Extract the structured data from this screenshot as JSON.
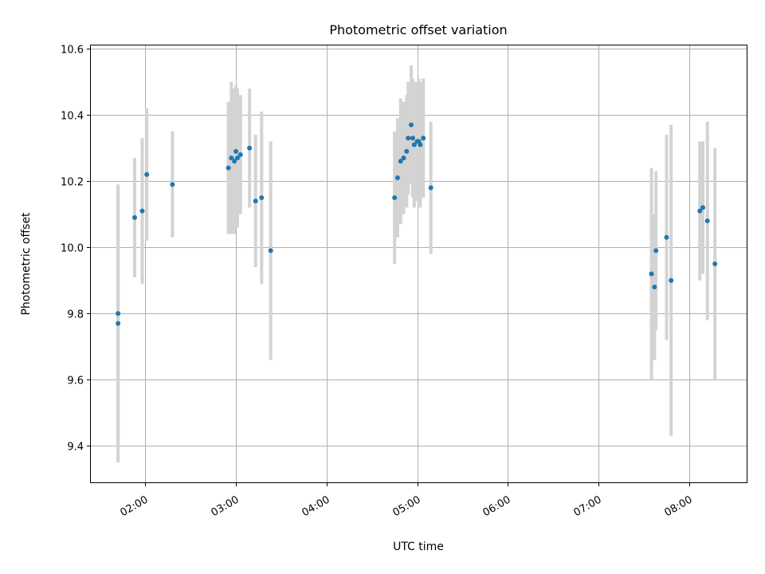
{
  "chart_data": {
    "type": "scatter",
    "title": "Photometric offset variation",
    "xlabel": "UTC time",
    "ylabel": "Photometric offset",
    "grid": true,
    "x_ticks": [
      "02:00",
      "03:00",
      "04:00",
      "05:00",
      "06:00",
      "07:00",
      "08:00"
    ],
    "y_ticks": [
      "9.4",
      "9.6",
      "9.8",
      "10.0",
      "10.2",
      "10.4",
      "10.6"
    ],
    "ylim": [
      9.29,
      10.61
    ],
    "xlim": [
      "01:24",
      "08:38"
    ],
    "colors": {
      "point": "#1f77b4",
      "errorbar": "#d3d3d3",
      "grid": "#b0b0b0"
    },
    "series": [
      {
        "points": [
          {
            "x": "01:42",
            "y": 9.77,
            "err": 0.42
          },
          {
            "x": "01:42",
            "y": 9.8,
            "err": 0.39
          },
          {
            "x": "01:53",
            "y": 10.09,
            "err": 0.18
          },
          {
            "x": "01:58",
            "y": 10.11,
            "err": 0.22
          },
          {
            "x": "02:01",
            "y": 10.22,
            "err": 0.2
          },
          {
            "x": "02:18",
            "y": 10.19,
            "err": 0.16
          },
          {
            "x": "02:55",
            "y": 10.24,
            "err": 0.2
          },
          {
            "x": "02:57",
            "y": 10.27,
            "err": 0.23
          },
          {
            "x": "02:59",
            "y": 10.26,
            "err": 0.22
          },
          {
            "x": "03:00",
            "y": 10.29,
            "err": 0.2
          },
          {
            "x": "03:01",
            "y": 10.27,
            "err": 0.21
          },
          {
            "x": "03:03",
            "y": 10.28,
            "err": 0.18
          },
          {
            "x": "03:09",
            "y": 10.3,
            "err": 0.18
          },
          {
            "x": "03:13",
            "y": 10.14,
            "err": 0.2
          },
          {
            "x": "03:17",
            "y": 10.15,
            "err": 0.26
          },
          {
            "x": "03:23",
            "y": 9.99,
            "err": 0.33
          },
          {
            "x": "04:45",
            "y": 10.15,
            "err": 0.2
          },
          {
            "x": "04:47",
            "y": 10.21,
            "err": 0.18
          },
          {
            "x": "04:49",
            "y": 10.26,
            "err": 0.19
          },
          {
            "x": "04:51",
            "y": 10.27,
            "err": 0.17
          },
          {
            "x": "04:53",
            "y": 10.29,
            "err": 0.17
          },
          {
            "x": "04:54",
            "y": 10.33,
            "err": 0.17
          },
          {
            "x": "04:56",
            "y": 10.37,
            "err": 0.18
          },
          {
            "x": "04:57",
            "y": 10.33,
            "err": 0.18
          },
          {
            "x": "04:58",
            "y": 10.31,
            "err": 0.19
          },
          {
            "x": "05:00",
            "y": 10.32,
            "err": 0.18
          },
          {
            "x": "05:01",
            "y": 10.32,
            "err": 0.19
          },
          {
            "x": "05:02",
            "y": 10.31,
            "err": 0.19
          },
          {
            "x": "05:04",
            "y": 10.33,
            "err": 0.18
          },
          {
            "x": "05:09",
            "y": 10.18,
            "err": 0.2
          },
          {
            "x": "07:35",
            "y": 9.92,
            "err": 0.32
          },
          {
            "x": "07:37",
            "y": 9.88,
            "err": 0.22
          },
          {
            "x": "07:38",
            "y": 9.99,
            "err": 0.24
          },
          {
            "x": "07:45",
            "y": 10.03,
            "err": 0.31
          },
          {
            "x": "07:48",
            "y": 9.9,
            "err": 0.47
          },
          {
            "x": "08:07",
            "y": 10.11,
            "err": 0.21
          },
          {
            "x": "08:09",
            "y": 10.12,
            "err": 0.2
          },
          {
            "x": "08:12",
            "y": 10.08,
            "err": 0.3
          },
          {
            "x": "08:17",
            "y": 9.95,
            "err": 0.35
          }
        ]
      }
    ]
  }
}
